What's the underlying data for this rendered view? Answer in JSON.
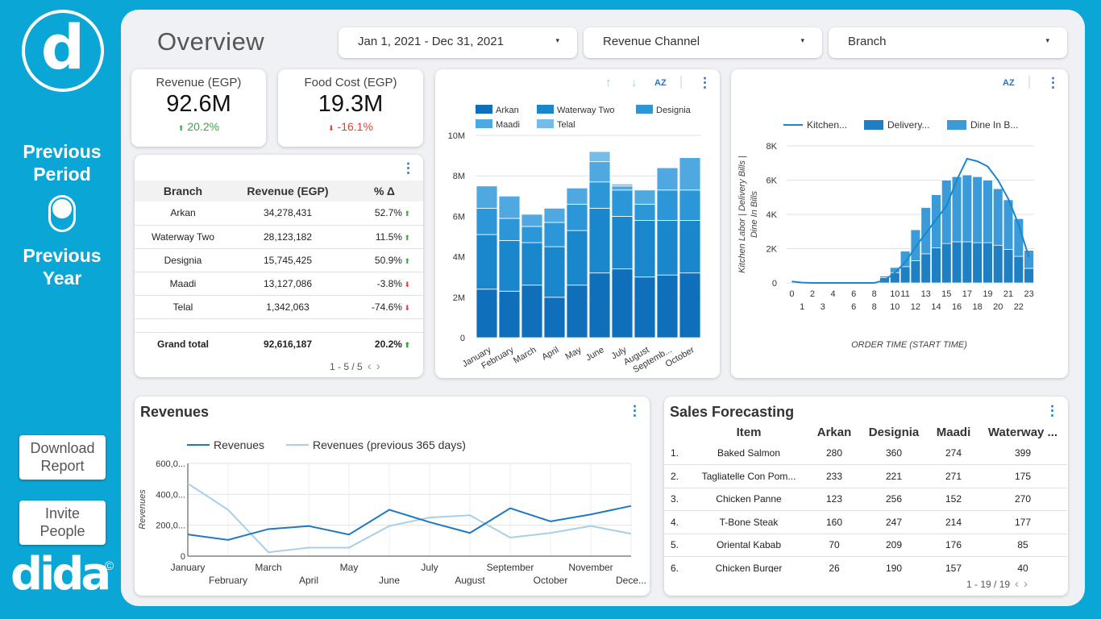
{
  "sidebar": {
    "logo_letter": "d",
    "toggle_top": [
      "Previous",
      "Period"
    ],
    "toggle_bottom": [
      "Previous",
      "Year"
    ],
    "download": [
      "Download",
      "Report"
    ],
    "invite": [
      "Invite",
      "People"
    ],
    "brand": "dida",
    "brand_mark": "©"
  },
  "header": {
    "title": "Overview",
    "date_range": "Jan 1, 2021 - Dec 31, 2021",
    "channel": "Revenue Channel",
    "branch": "Branch",
    "caret": "▾"
  },
  "kpis": [
    {
      "label": "Revenue (EGP)",
      "value": "92.6M",
      "delta": "20.2%",
      "dir": "up"
    },
    {
      "label": "Food Cost (EGP)",
      "value": "19.3M",
      "delta": "-16.1%",
      "dir": "down"
    }
  ],
  "branch_table": {
    "headers": [
      "Branch",
      "Revenue (EGP)",
      "% Δ"
    ],
    "rows": [
      {
        "branch": "Arkan",
        "revenue": "34,278,431",
        "pct": "52.7%",
        "dir": "up"
      },
      {
        "branch": "Waterway Two",
        "revenue": "28,123,182",
        "pct": "11.5%",
        "dir": "up"
      },
      {
        "branch": "Designia",
        "revenue": "15,745,425",
        "pct": "50.9%",
        "dir": "up"
      },
      {
        "branch": "Maadi",
        "revenue": "13,127,086",
        "pct": "-3.8%",
        "dir": "down"
      },
      {
        "branch": "Telal",
        "revenue": "1,342,063",
        "pct": "-74.6%",
        "dir": "down"
      }
    ],
    "total": {
      "branch": "Grand total",
      "revenue": "92,616,187",
      "pct": "20.2%",
      "dir": "up"
    },
    "pager": "1 - 5 / 5"
  },
  "revenues_card": {
    "title": "Revenues"
  },
  "forecast": {
    "title": "Sales Forecasting",
    "headers": [
      "Item",
      "Arkan",
      "Designia",
      "Maadi",
      "Waterway ..."
    ],
    "rows": [
      {
        "idx": "1.",
        "item": "Baked Salmon",
        "arkan": "280",
        "designia": "360",
        "maadi": "274",
        "waterway": "399"
      },
      {
        "idx": "2.",
        "item": "Tagliatelle Con Pom...",
        "arkan": "233",
        "designia": "221",
        "maadi": "271",
        "waterway": "175"
      },
      {
        "idx": "3.",
        "item": "Chicken Panne",
        "arkan": "123",
        "designia": "256",
        "maadi": "152",
        "waterway": "270"
      },
      {
        "idx": "4.",
        "item": "T-Bone Steak",
        "arkan": "160",
        "designia": "247",
        "maadi": "214",
        "waterway": "177"
      },
      {
        "idx": "5.",
        "item": "Oriental Kabab",
        "arkan": "70",
        "designia": "209",
        "maadi": "176",
        "waterway": "85"
      },
      {
        "idx": "6.",
        "item": "Chicken Burger",
        "arkan": "26",
        "designia": "190",
        "maadi": "157",
        "waterway": "40"
      }
    ],
    "pager": "1 - 19 / 19"
  },
  "chart_data": [
    {
      "type": "bar",
      "stacked": true,
      "title": "",
      "categories": [
        "January",
        "February",
        "March",
        "April",
        "May",
        "June",
        "July",
        "August",
        "Septemb...",
        "October"
      ],
      "series": [
        {
          "name": "Arkan",
          "color": "#0f6fba",
          "values": [
            2.4,
            2.3,
            2.6,
            2.0,
            2.6,
            3.2,
            3.4,
            3.0,
            3.1,
            3.2
          ]
        },
        {
          "name": "Waterway Two",
          "color": "#1a86cc",
          "values": [
            2.7,
            2.5,
            2.1,
            2.5,
            2.7,
            3.2,
            2.6,
            2.8,
            2.7,
            2.6
          ]
        },
        {
          "name": "Designia",
          "color": "#2c97d8",
          "values": [
            1.3,
            1.1,
            0.8,
            1.2,
            1.3,
            1.3,
            1.3,
            0.8,
            1.5,
            1.5
          ]
        },
        {
          "name": "Maadi",
          "color": "#4fa9e0",
          "values": [
            1.1,
            1.1,
            0.6,
            0.7,
            0.8,
            1.0,
            0.2,
            0.7,
            1.1,
            1.6
          ]
        },
        {
          "name": "Telal",
          "color": "#74bde8",
          "values": [
            0,
            0,
            0,
            0,
            0,
            0.5,
            0.1,
            0,
            0,
            0
          ]
        }
      ],
      "yticks": [
        "0",
        "2M",
        "4M",
        "6M",
        "8M",
        "10M"
      ],
      "ylim": [
        0,
        10
      ],
      "grid": true,
      "legend": "top"
    },
    {
      "type": "combo",
      "title": "",
      "x": [
        0,
        1,
        2,
        3,
        4,
        5,
        6,
        7,
        8,
        9,
        10,
        11,
        12,
        13,
        14,
        15,
        16,
        17,
        18,
        19,
        20,
        21,
        22,
        23
      ],
      "xticks_top": [
        "0",
        "2",
        "4",
        "6",
        "8",
        "10",
        "11",
        "13",
        "15",
        "17",
        "19",
        "21",
        "23"
      ],
      "xticks_bottom": [
        "1",
        "3",
        "6",
        "8",
        "10",
        "12",
        "14",
        "16",
        "18",
        "20",
        "22"
      ],
      "xlabel": "ORDER TIME (START TIME)",
      "ylabel": "Kitchen Labor | Delivery Bills | Dine In Bills",
      "yticks": [
        "0",
        "2K",
        "4K",
        "6K",
        "8K"
      ],
      "ylim": [
        0,
        8000
      ],
      "series": [
        {
          "name": "Kitchen...",
          "kind": "line",
          "color": "#1a86cc",
          "values": [
            80,
            20,
            0,
            0,
            0,
            0,
            0,
            0,
            0,
            150,
            600,
            1200,
            2100,
            2900,
            3700,
            4500,
            6000,
            7250,
            7100,
            6800,
            6000,
            4900,
            3400,
            1500
          ]
        },
        {
          "name": "Delivery...",
          "kind": "bar",
          "color": "#1f7fc3",
          "values": [
            0,
            0,
            0,
            0,
            0,
            0,
            0,
            0,
            20,
            300,
            600,
            950,
            1300,
            1700,
            2050,
            2300,
            2400,
            2400,
            2350,
            2350,
            2200,
            1950,
            1550,
            850
          ]
        },
        {
          "name": "Dine In B...",
          "kind": "bar",
          "color": "#3a9bd8",
          "values": [
            0,
            0,
            0,
            0,
            0,
            0,
            0,
            0,
            0,
            100,
            300,
            900,
            1800,
            2700,
            3100,
            3700,
            3800,
            3900,
            3850,
            3650,
            3300,
            2900,
            2200,
            1050
          ]
        }
      ],
      "grid": true,
      "legend": "top"
    },
    {
      "type": "line",
      "title": "Revenues",
      "categories": [
        "January",
        "February",
        "March",
        "April",
        "May",
        "June",
        "July",
        "August",
        "September",
        "October",
        "November",
        "Dece..."
      ],
      "yticks": [
        "0",
        "200,0...",
        "400,0...",
        "600,0..."
      ],
      "ylim": [
        0,
        600000
      ],
      "ylabel": "Revenues",
      "series": [
        {
          "name": "Revenues",
          "color": "#1f79c0",
          "values": [
            140000,
            105000,
            175000,
            195000,
            140000,
            300000,
            220000,
            150000,
            310000,
            225000,
            270000,
            325000
          ]
        },
        {
          "name": "Revenues (previous 365 days)",
          "color": "#a7cfe8",
          "values": [
            470000,
            300000,
            25000,
            55000,
            55000,
            195000,
            250000,
            265000,
            120000,
            150000,
            195000,
            145000
          ]
        }
      ],
      "grid": true,
      "legend": "top"
    }
  ]
}
